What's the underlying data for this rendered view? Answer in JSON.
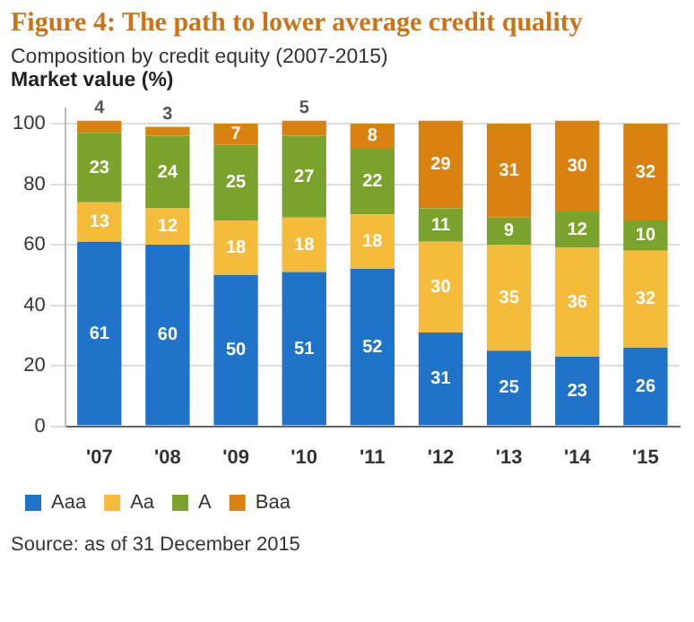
{
  "chart_data": {
    "type": "bar",
    "title": "Figure 4: The path to lower average credit quality",
    "subtitle": "Composition by credit equity (2007-2015)",
    "ylabel": "Market value (%)",
    "categories": [
      "'07",
      "'08",
      "'09",
      "'10",
      "'11",
      "'12",
      "'13",
      "'14",
      "'15"
    ],
    "series": [
      {
        "name": "Aaa",
        "color": "#1f74c9",
        "values": [
          61,
          60,
          50,
          51,
          52,
          31,
          25,
          23,
          26
        ]
      },
      {
        "name": "Aa",
        "color": "#f5bb3a",
        "values": [
          13,
          12,
          18,
          18,
          18,
          30,
          35,
          36,
          32
        ]
      },
      {
        "name": "A",
        "color": "#7aa22c",
        "values": [
          23,
          24,
          25,
          27,
          22,
          11,
          9,
          12,
          10
        ]
      },
      {
        "name": "Baa",
        "color": "#d9820f",
        "values": [
          4,
          3,
          7,
          5,
          8,
          29,
          31,
          30,
          32
        ]
      }
    ],
    "stacked": true,
    "data_labels": true,
    "ylim": [
      0,
      105
    ],
    "yticks": [
      0,
      20,
      40,
      60,
      80,
      100
    ],
    "grid": "y",
    "legend": "bottom left",
    "annotations": [
      "Source: as of 31 December 2015"
    ]
  }
}
